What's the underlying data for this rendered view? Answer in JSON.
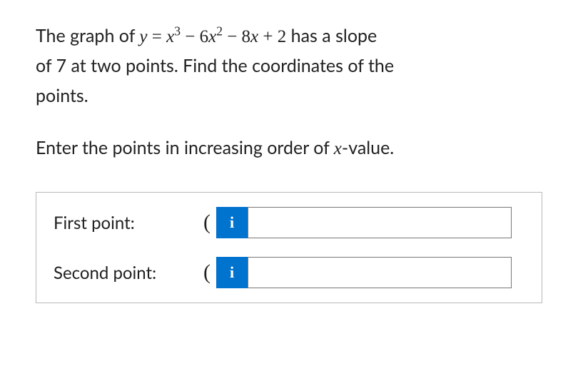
{
  "problem": {
    "line1_prefix": "The graph of ",
    "equation": {
      "lhs_var": "y",
      "equals": " = ",
      "term1_var": "x",
      "term1_exp": "3",
      "minus1": " − ",
      "term2_coef": "6",
      "term2_var": "x",
      "term2_exp": "2",
      "minus2": " − ",
      "term3_coef": "8",
      "term3_var": "x",
      "plus": " + ",
      "term4": "2"
    },
    "line1_suffix": " has a slope",
    "line2": "of 7 at two points. Find the coordinates of the",
    "line3": "points."
  },
  "instruction": {
    "prefix": "Enter the points in increasing order of ",
    "var": "x",
    "suffix": "-value."
  },
  "answers": {
    "first": {
      "label": "First point:",
      "paren": "(",
      "info_icon": "i",
      "value": ""
    },
    "second": {
      "label": "Second point:",
      "paren": "(",
      "info_icon": "i",
      "value": ""
    }
  },
  "colors": {
    "info_bg": "#0073cf",
    "info_fg": "#ffffff",
    "border": "#b8b8b8",
    "input_border": "#777777",
    "text": "#212121"
  }
}
